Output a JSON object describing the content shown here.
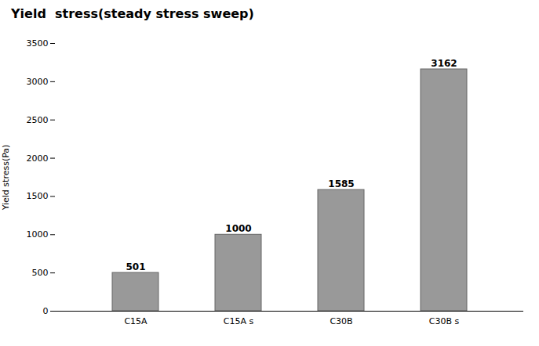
{
  "chart_data": {
    "type": "bar",
    "title": "Yield  stress(steady stress sweep)",
    "categories": [
      "C15A",
      "C15A s",
      "C30B",
      "C30B s"
    ],
    "values": [
      501,
      1000,
      1585,
      3162
    ],
    "color": "#999999",
    "ylabel": "Yield stress(Pa)",
    "ylim": [
      0,
      3500
    ],
    "yticks": [
      0,
      500,
      1000,
      1500,
      2000,
      2500,
      3000,
      3500
    ],
    "grid": false,
    "data_labels": true
  }
}
